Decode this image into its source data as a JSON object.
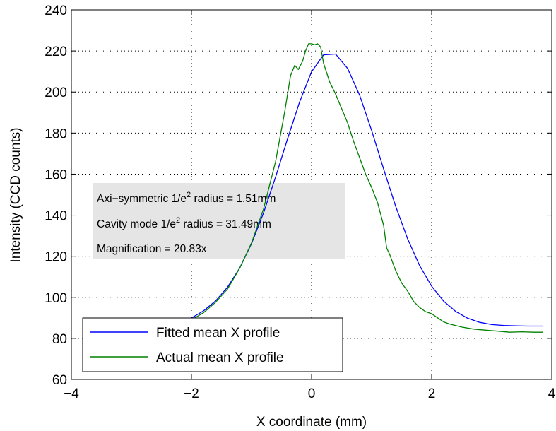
{
  "chart_data": {
    "type": "line",
    "title": "",
    "xlabel": "X coordinate (mm)",
    "ylabel": "Intensity (CCD counts)",
    "xlim": [
      -4,
      4
    ],
    "ylim": [
      60,
      240
    ],
    "xticks": [
      -4,
      -2,
      0,
      2,
      4
    ],
    "xtick_labels": [
      "−4",
      "−2",
      "0",
      "2",
      "4"
    ],
    "yticks": [
      60,
      80,
      100,
      120,
      140,
      160,
      180,
      200,
      220,
      240
    ],
    "ytick_labels": [
      "60",
      "80",
      "100",
      "120",
      "140",
      "160",
      "180",
      "200",
      "220",
      "240"
    ],
    "grid": true,
    "legend_position": "bottom-left",
    "series": [
      {
        "name": "Fitted mean X profile",
        "color": "#0000ff",
        "x": [
          -2.0,
          -1.8,
          -1.6,
          -1.4,
          -1.2,
          -1.0,
          -0.8,
          -0.6,
          -0.4,
          -0.2,
          0.0,
          0.2,
          0.4,
          0.6,
          0.8,
          1.0,
          1.2,
          1.4,
          1.6,
          1.8,
          2.0,
          2.2,
          2.4,
          2.6,
          2.8,
          3.0,
          3.2,
          3.4,
          3.6,
          3.85
        ],
        "y": [
          89.9,
          93.4,
          98.2,
          104.9,
          114.1,
          126.1,
          141.1,
          158.5,
          177.2,
          195.1,
          209.9,
          218.1,
          218.5,
          211.5,
          198.5,
          181.3,
          162.5,
          144.4,
          128.5,
          115.4,
          105.4,
          98.1,
          93.1,
          89.8,
          87.8,
          86.7,
          86.3,
          86.1,
          86.0,
          86.0
        ]
      },
      {
        "name": "Actual mean X profile",
        "color": "#008000",
        "x": [
          -2.0,
          -1.8,
          -1.6,
          -1.4,
          -1.2,
          -1.0,
          -0.8,
          -0.6,
          -0.45,
          -0.35,
          -0.28,
          -0.22,
          -0.15,
          -0.1,
          -0.05,
          0.0,
          0.05,
          0.1,
          0.15,
          0.2,
          0.3,
          0.4,
          0.5,
          0.6,
          0.7,
          0.8,
          0.9,
          1.0,
          1.1,
          1.2,
          1.25,
          1.3,
          1.4,
          1.5,
          1.6,
          1.7,
          1.8,
          1.9,
          2.0,
          2.1,
          2.2,
          2.3,
          2.5,
          2.7,
          2.9,
          3.1,
          3.3,
          3.5,
          3.7,
          3.85
        ],
        "y": [
          89.0,
          92.5,
          97.5,
          104.0,
          114.0,
          126.5,
          143.0,
          166.0,
          190.0,
          208.0,
          213.0,
          211.0,
          215.0,
          220.0,
          223.5,
          223.5,
          223.0,
          223.5,
          222.0,
          214.0,
          205.0,
          199.0,
          192.0,
          185.0,
          176.0,
          168.0,
          160.0,
          153.5,
          146.0,
          135.0,
          124.0,
          121.0,
          113.0,
          107.0,
          103.0,
          98.0,
          95.0,
          93.0,
          92.0,
          90.0,
          88.0,
          87.0,
          85.5,
          84.5,
          84.0,
          83.5,
          83.0,
          83.2,
          83.0,
          83.0
        ]
      }
    ],
    "annotations": [
      {
        "prefix": "Axi−symmetric 1/e",
        "sup": "2",
        "suffix": " radius = 1.51mm"
      },
      {
        "prefix": "Cavity mode 1/e",
        "sup": "2",
        "suffix": " radius = 31.49mm"
      },
      {
        "prefix": "Magnification = 20.83x",
        "sup": "",
        "suffix": ""
      }
    ],
    "annotation_background": "#e5e5e5"
  }
}
